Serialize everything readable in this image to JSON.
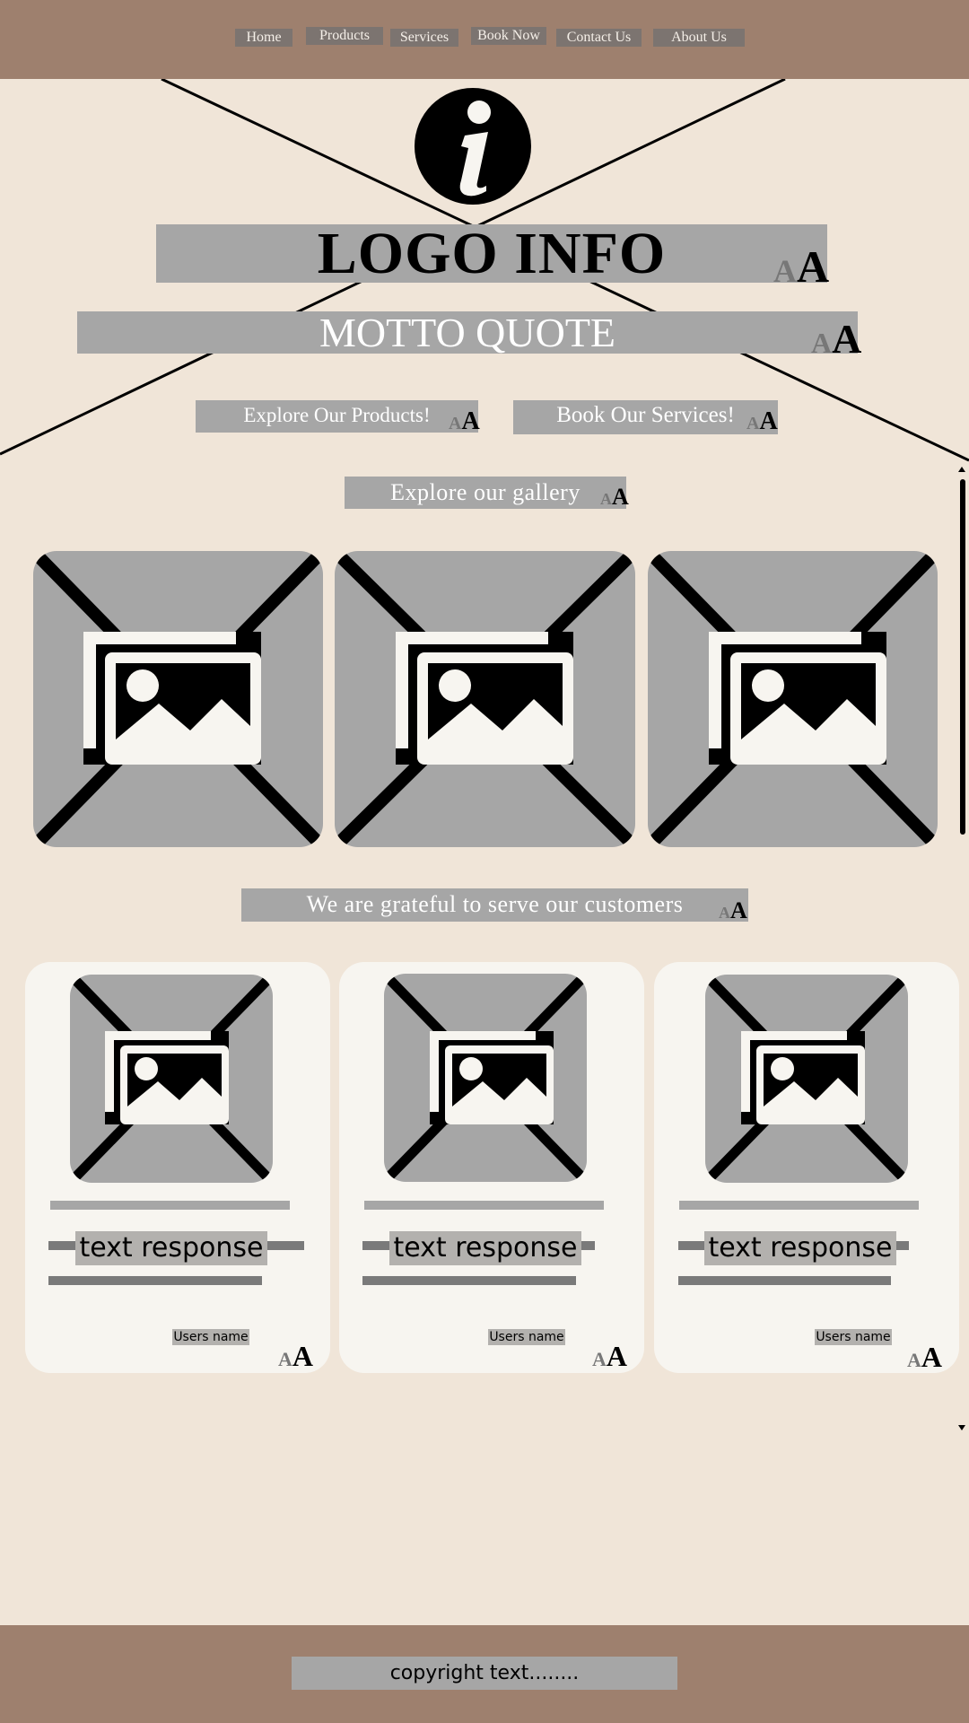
{
  "nav": {
    "items": [
      {
        "label": "Home"
      },
      {
        "label": "Products"
      },
      {
        "label": "Services"
      },
      {
        "label": "Book Now"
      },
      {
        "label": "Contact Us"
      },
      {
        "label": "About Us"
      }
    ]
  },
  "hero": {
    "info_icon": "info-icon",
    "logo": "LOGO INFO",
    "motto": "MOTTO QUOTE",
    "cta_products": "Explore Our Products!",
    "cta_services": "Book Our Services!",
    "font_size_glyph": "AA"
  },
  "gallery": {
    "title": "Explore our gallery",
    "images": [
      "image-placeholder",
      "image-placeholder",
      "image-placeholder"
    ]
  },
  "testimonials": {
    "title": "We are grateful to serve our customers",
    "cards": [
      {
        "response": "text response",
        "user": "Users name"
      },
      {
        "response": "text response",
        "user": "Users name"
      },
      {
        "response": "text response",
        "user": "Users name"
      }
    ]
  },
  "footer": {
    "copyright": "copyright text........"
  },
  "colors": {
    "header_footer": "#9e806e",
    "background": "#f0e5d8",
    "placeholder_gray": "#a6a6a6",
    "card": "#f7f5f0"
  }
}
